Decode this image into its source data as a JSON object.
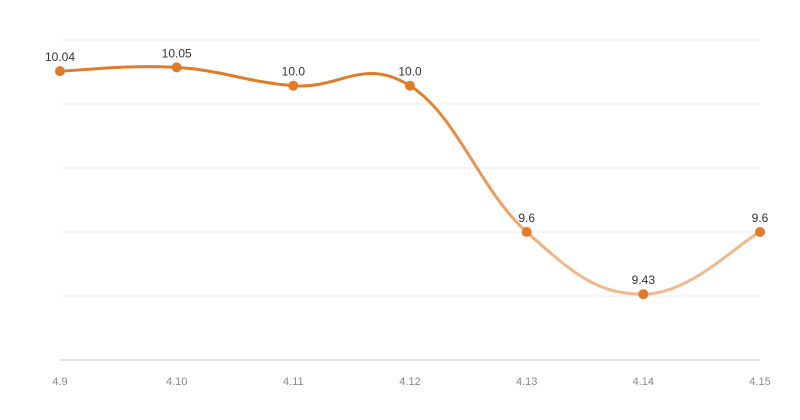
{
  "chart_data": {
    "type": "line",
    "categories": [
      "4.9",
      "4.10",
      "4.11",
      "4.12",
      "4.13",
      "4.14",
      "4.15"
    ],
    "values": [
      10.04,
      10.05,
      10.0,
      10.0,
      9.6,
      9.43,
      9.6
    ],
    "data_labels": [
      "10.04",
      "10.05",
      "10.0",
      "10.0",
      "9.6",
      "9.43",
      "9.6"
    ],
    "ylim": [
      9.25,
      10.125
    ],
    "grid": true,
    "smooth": true,
    "colors": {
      "line": "#e07b2a",
      "line_light": "#f0b98c",
      "marker": "#e07b2a"
    }
  }
}
